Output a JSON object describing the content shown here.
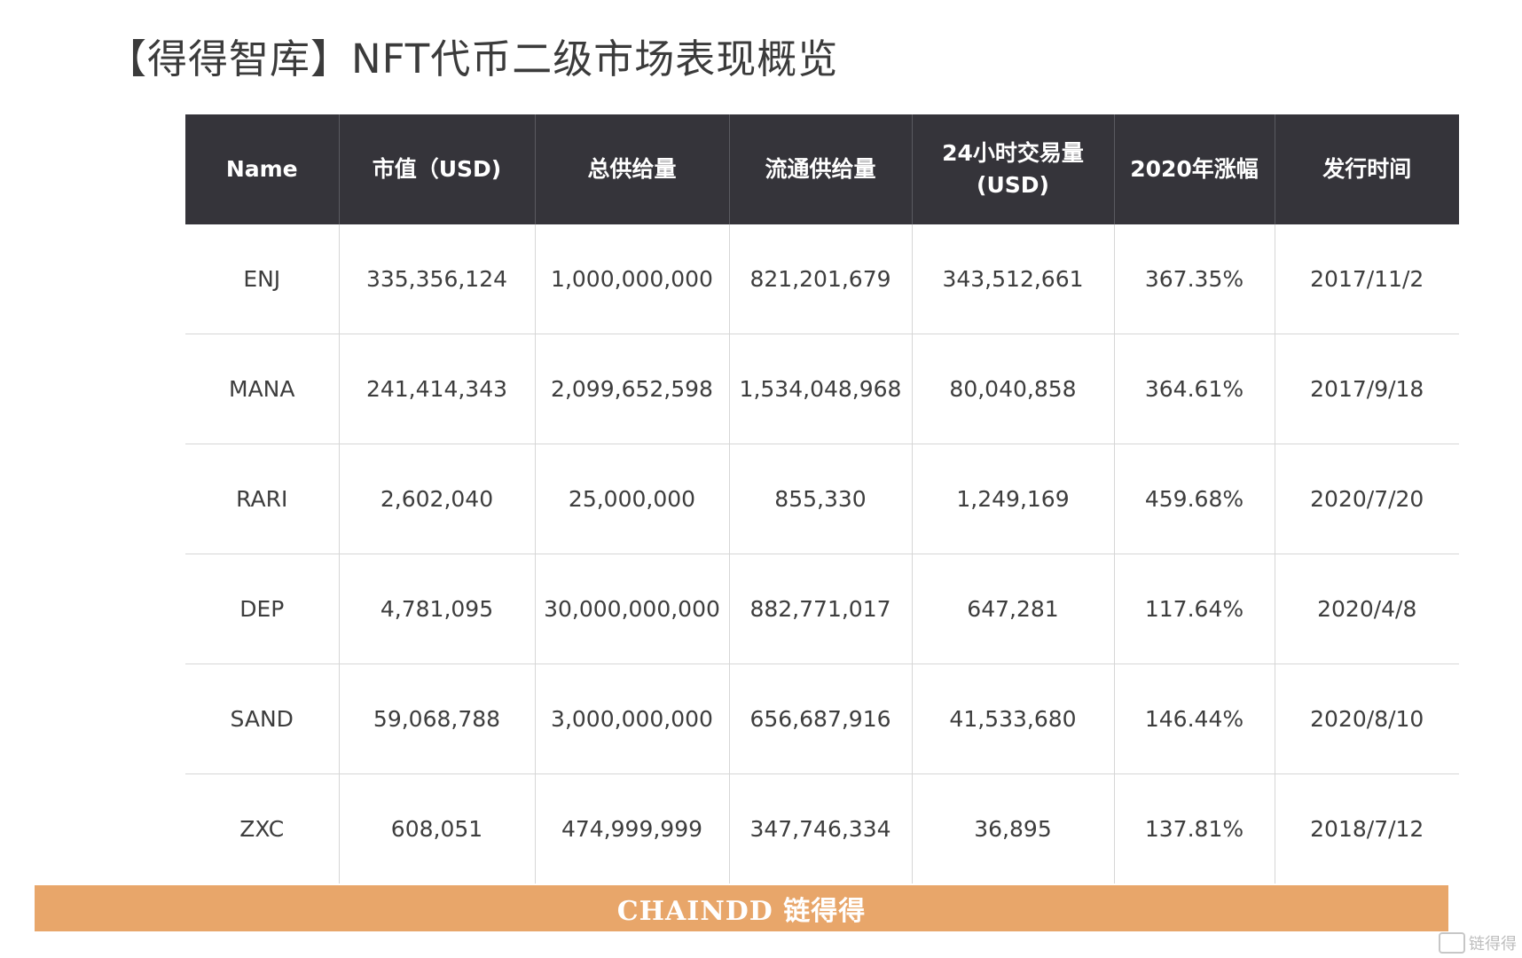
{
  "title": "【得得智库】NFT代币二级市场表现概览",
  "table": {
    "headers": [
      "Name",
      "市值（USD)",
      "总供给量",
      "流通供给量",
      "24小时交易量(USD)",
      "2020年涨幅",
      "发行时间"
    ],
    "rows": [
      [
        "ENJ",
        "335,356,124",
        "1,000,000,000",
        "821,201,679",
        "343,512,661",
        "367.35%",
        "2017/11/2"
      ],
      [
        "MANA",
        "241,414,343",
        "2,099,652,598",
        "1,534,048,968",
        "80,040,858",
        "364.61%",
        "2017/9/18"
      ],
      [
        "RARI",
        "2,602,040",
        "25,000,000",
        "855,330",
        "1,249,169",
        "459.68%",
        "2020/7/20"
      ],
      [
        "DEP",
        "4,781,095",
        "30,000,000,000",
        "882,771,017",
        "647,281",
        "117.64%",
        "2020/4/8"
      ],
      [
        "SAND",
        "59,068,788",
        "3,000,000,000",
        "656,687,916",
        "41,533,680",
        "146.44%",
        "2020/8/10"
      ],
      [
        "ZXC",
        "608,051",
        "474,999,999",
        "347,746,334",
        "36,895",
        "137.81%",
        "2018/7/12"
      ]
    ]
  },
  "footer": {
    "logo_text": "CHAINDD 链得得"
  },
  "watermark": {
    "text": "链得得"
  }
}
